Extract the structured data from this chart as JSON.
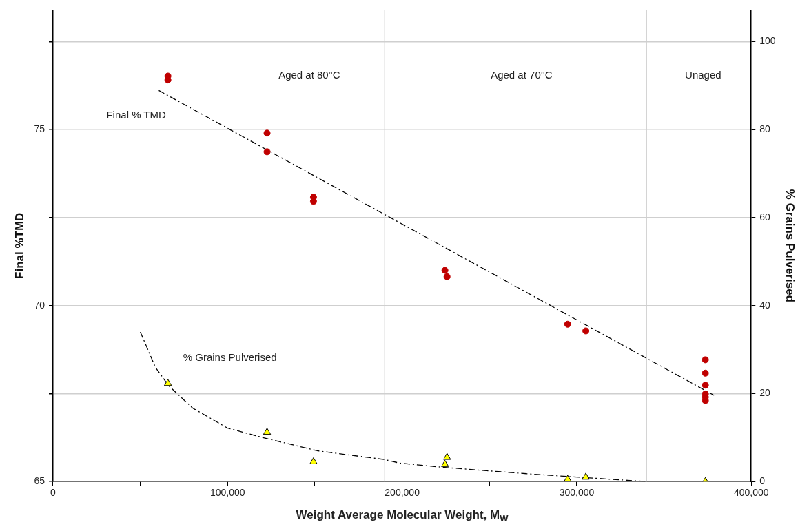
{
  "chart_data": {
    "type": "scatter",
    "xlabel": "Weight Average Molecular Weight, M$_{W}$",
    "ylabel": "Final %TMD",
    "y2label": "% Grains Pulverised",
    "xlim": [
      0,
      400000
    ],
    "xticks": [
      0,
      {
        "value": 50000,
        "label": null
      },
      {
        "value": 100000,
        "label": "100,000"
      },
      {
        "value": 150000,
        "label": null
      },
      {
        "value": 200000,
        "label": "200,000"
      },
      {
        "value": 250000,
        "label": null
      },
      {
        "value": 300000,
        "label": "300,000"
      },
      {
        "value": 350000,
        "label": null
      },
      {
        "value": 400000,
        "label": "400,000"
      }
    ],
    "ylim": [
      65,
      78.4
    ],
    "yticks": [
      65,
      {
        "value": 67.5,
        "label": null
      },
      70,
      {
        "value": 72.5,
        "label": null
      },
      75,
      {
        "value": 77.5,
        "label": null
      }
    ],
    "y2lim": [
      0,
      107.2
    ],
    "y2ticks": [
      0,
      20,
      40,
      60,
      80,
      100
    ],
    "grid": "y",
    "legend": false,
    "ref_lines": [
      {
        "axis": "x",
        "value": 190000,
        "color": "#d0d0d0"
      },
      {
        "axis": "x",
        "value": 340000,
        "color": "#d0d0d0"
      }
    ],
    "annotations": [
      "Aged at 80°C",
      "Aged at 70°C",
      "Unaged"
    ],
    "series": [
      {
        "name": "Final % TMD",
        "color": "#c00000",
        "marker": "circle",
        "x": [
          65800,
          65800,
          122600,
          122600,
          149200,
          149200,
          224500,
          225700,
          294800,
          305200,
          373700,
          373700,
          373700,
          373700,
          373700,
          373700
        ],
        "values": [
          76.52,
          76.41,
          74.9,
          74.37,
          73.08,
          72.96,
          71.0,
          70.82,
          69.47,
          69.28,
          68.46,
          68.08,
          67.74,
          67.49,
          67.4,
          67.3
        ]
      },
      {
        "name": "% Grains Pulverised",
        "color": "#ffff00",
        "marker": "triangle",
        "axis": "y2",
        "x": [
          65800,
          122600,
          149200,
          225700,
          224500,
          294800,
          305200,
          373700
        ],
        "values": [
          22.3,
          11.2,
          4.5,
          5.5,
          3.9,
          0.5,
          1.0,
          0
        ]
      },
      {
        "type": "line",
        "color": "#000000",
        "marker": "none",
        "line_style": "dashed",
        "x": [
          60600,
          378700
        ],
        "values": [
          76.11,
          67.45
        ]
      },
      {
        "type": "line",
        "color": "#000000",
        "marker": "none",
        "line_style": "dashed",
        "axis": "y2",
        "x": [
          50000,
          58600,
          66200,
          80000,
          99800,
          121100,
          151500,
          190000,
          198500,
          224500,
          274200,
          340000
        ],
        "values": [
          34.0,
          26.0,
          21.8,
          16.7,
          12.2,
          9.9,
          7.0,
          5.0,
          4.2,
          3.2,
          1.7,
          0
        ]
      }
    ]
  }
}
